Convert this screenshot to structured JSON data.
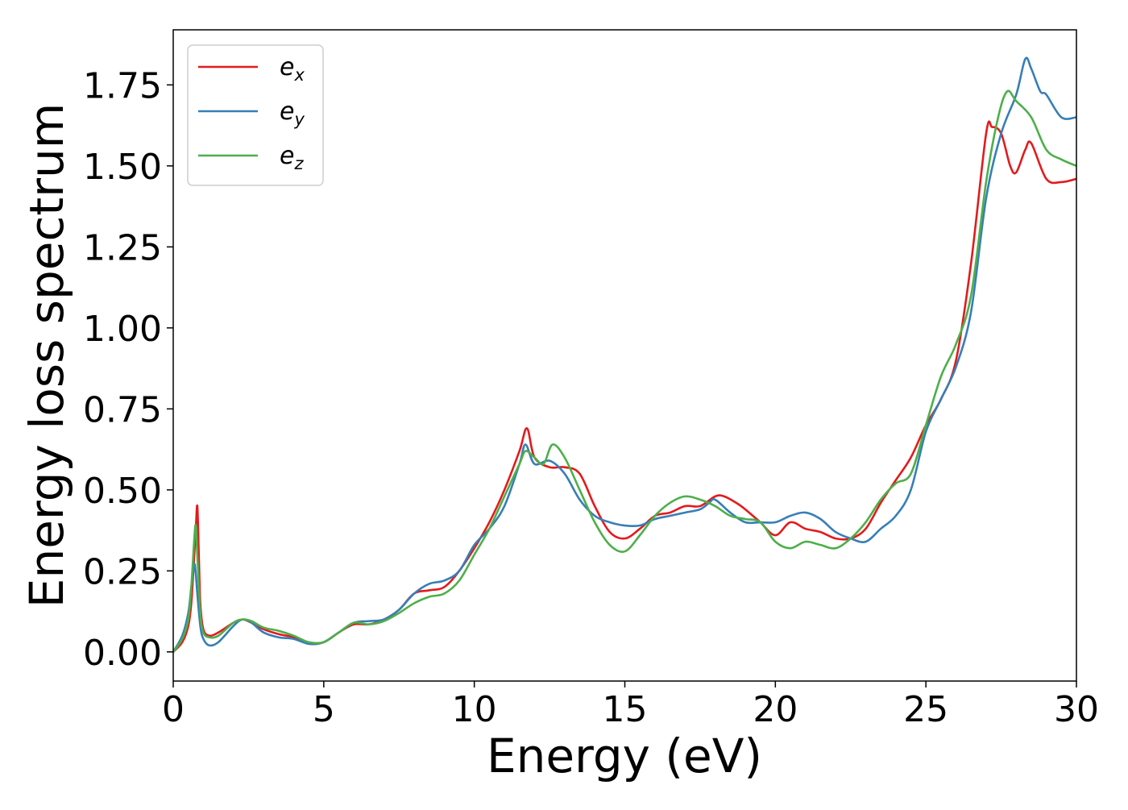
{
  "chart_data": {
    "type": "line",
    "xlabel": "Energy (eV)",
    "ylabel": "Energy loss spectrum",
    "xlim": [
      0,
      30
    ],
    "ylim": [
      -0.09,
      1.92
    ],
    "xticks": [
      0,
      5,
      10,
      15,
      20,
      25,
      30
    ],
    "yticks": [
      0.0,
      0.25,
      0.5,
      0.75,
      1.0,
      1.25,
      1.5,
      1.75
    ],
    "xtick_labels": [
      "0",
      "5",
      "10",
      "15",
      "20",
      "25",
      "30"
    ],
    "ytick_labels": [
      "0.00",
      "0.25",
      "0.50",
      "0.75",
      "1.00",
      "1.25",
      "1.50",
      "1.75"
    ],
    "grid": false,
    "legend_position": "top-left",
    "series": [
      {
        "name": "e_x",
        "label_base": "e",
        "label_sub": "x",
        "color": "#e41a1c",
        "x": [
          0,
          0.3,
          0.5,
          0.6,
          0.7,
          0.75,
          0.8,
          0.85,
          0.9,
          1.0,
          1.2,
          1.5,
          2.0,
          2.3,
          2.6,
          3.0,
          3.5,
          4.0,
          4.5,
          5.0,
          5.5,
          6.0,
          6.5,
          7.0,
          7.5,
          8.0,
          8.5,
          9.0,
          9.5,
          10.0,
          10.5,
          11.0,
          11.5,
          11.75,
          12.0,
          12.5,
          13.0,
          13.5,
          14.0,
          14.5,
          15.0,
          15.5,
          16.0,
          16.5,
          17.0,
          17.5,
          18.0,
          18.3,
          18.7,
          19.0,
          19.5,
          20.0,
          20.5,
          21.0,
          21.5,
          22.0,
          22.5,
          23.0,
          23.5,
          24.0,
          24.5,
          25.0,
          25.5,
          26.0,
          26.5,
          27.0,
          27.2,
          27.5,
          27.8,
          28.0,
          28.3,
          28.5,
          29.0,
          29.5,
          30.0
        ],
        "y": [
          0.0,
          0.03,
          0.08,
          0.15,
          0.3,
          0.38,
          0.45,
          0.3,
          0.15,
          0.07,
          0.05,
          0.06,
          0.09,
          0.1,
          0.09,
          0.07,
          0.055,
          0.045,
          0.025,
          0.03,
          0.06,
          0.085,
          0.085,
          0.1,
          0.13,
          0.18,
          0.19,
          0.2,
          0.25,
          0.32,
          0.4,
          0.5,
          0.62,
          0.69,
          0.6,
          0.57,
          0.57,
          0.55,
          0.45,
          0.37,
          0.35,
          0.38,
          0.42,
          0.43,
          0.45,
          0.45,
          0.48,
          0.48,
          0.46,
          0.44,
          0.4,
          0.36,
          0.4,
          0.38,
          0.37,
          0.35,
          0.35,
          0.38,
          0.46,
          0.53,
          0.6,
          0.7,
          0.78,
          0.9,
          1.2,
          1.6,
          1.62,
          1.6,
          1.5,
          1.48,
          1.55,
          1.57,
          1.46,
          1.45,
          1.46
        ]
      },
      {
        "name": "e_y",
        "label_base": "e",
        "label_sub": "y",
        "color": "#377eb8",
        "x": [
          0,
          0.3,
          0.5,
          0.6,
          0.7,
          0.75,
          0.8,
          0.9,
          1.0,
          1.2,
          1.5,
          2.0,
          2.3,
          2.6,
          3.0,
          3.5,
          4.0,
          4.5,
          5.0,
          5.5,
          6.0,
          6.5,
          7.0,
          7.5,
          8.0,
          8.5,
          9.0,
          9.5,
          10.0,
          10.5,
          11.0,
          11.5,
          11.7,
          12.0,
          12.5,
          13.0,
          13.5,
          14.0,
          14.5,
          15.0,
          15.5,
          16.0,
          16.5,
          17.0,
          17.5,
          17.8,
          18.0,
          18.5,
          19.0,
          19.5,
          20.0,
          20.5,
          21.0,
          21.5,
          22.0,
          22.5,
          23.0,
          23.5,
          24.0,
          24.5,
          25.0,
          25.5,
          26.0,
          26.5,
          27.0,
          27.5,
          28.0,
          28.3,
          28.5,
          28.8,
          29.0,
          29.5,
          30.0
        ],
        "y": [
          0.0,
          0.05,
          0.12,
          0.2,
          0.27,
          0.24,
          0.18,
          0.08,
          0.04,
          0.02,
          0.03,
          0.08,
          0.1,
          0.09,
          0.06,
          0.045,
          0.04,
          0.025,
          0.03,
          0.06,
          0.09,
          0.095,
          0.1,
          0.13,
          0.18,
          0.21,
          0.22,
          0.25,
          0.33,
          0.38,
          0.45,
          0.58,
          0.64,
          0.58,
          0.59,
          0.55,
          0.47,
          0.42,
          0.4,
          0.39,
          0.39,
          0.41,
          0.42,
          0.43,
          0.44,
          0.46,
          0.47,
          0.43,
          0.4,
          0.4,
          0.4,
          0.42,
          0.43,
          0.41,
          0.37,
          0.35,
          0.34,
          0.38,
          0.42,
          0.5,
          0.68,
          0.78,
          0.88,
          1.05,
          1.4,
          1.6,
          1.72,
          1.83,
          1.8,
          1.73,
          1.72,
          1.65,
          1.65
        ]
      },
      {
        "name": "e_z",
        "label_base": "e",
        "label_sub": "z",
        "color": "#4daf4a",
        "x": [
          0,
          0.3,
          0.5,
          0.6,
          0.7,
          0.75,
          0.8,
          0.9,
          1.0,
          1.2,
          1.5,
          2.0,
          2.3,
          2.6,
          3.0,
          3.5,
          4.0,
          4.5,
          5.0,
          5.5,
          6.0,
          6.5,
          7.0,
          7.5,
          8.0,
          8.5,
          9.0,
          9.5,
          10.0,
          10.5,
          11.0,
          11.5,
          11.7,
          12.0,
          12.3,
          12.6,
          13.0,
          13.5,
          14.0,
          14.5,
          15.0,
          15.5,
          16.0,
          16.5,
          17.0,
          17.5,
          18.0,
          18.5,
          19.0,
          19.5,
          20.0,
          20.5,
          21.0,
          21.5,
          22.0,
          22.5,
          23.0,
          23.5,
          24.0,
          24.5,
          25.0,
          25.5,
          26.0,
          26.5,
          27.0,
          27.4,
          27.7,
          28.0,
          28.5,
          29.0,
          29.5,
          30.0
        ],
        "y": [
          0.0,
          0.04,
          0.1,
          0.2,
          0.35,
          0.39,
          0.3,
          0.12,
          0.06,
          0.045,
          0.05,
          0.09,
          0.1,
          0.095,
          0.075,
          0.065,
          0.05,
          0.03,
          0.03,
          0.06,
          0.09,
          0.085,
          0.095,
          0.12,
          0.15,
          0.17,
          0.18,
          0.22,
          0.3,
          0.38,
          0.48,
          0.58,
          0.62,
          0.6,
          0.58,
          0.64,
          0.6,
          0.5,
          0.4,
          0.33,
          0.31,
          0.36,
          0.42,
          0.46,
          0.48,
          0.47,
          0.45,
          0.42,
          0.41,
          0.4,
          0.34,
          0.32,
          0.34,
          0.33,
          0.32,
          0.35,
          0.4,
          0.47,
          0.52,
          0.55,
          0.7,
          0.85,
          0.95,
          1.1,
          1.45,
          1.65,
          1.73,
          1.7,
          1.65,
          1.55,
          1.52,
          1.5
        ]
      }
    ]
  }
}
